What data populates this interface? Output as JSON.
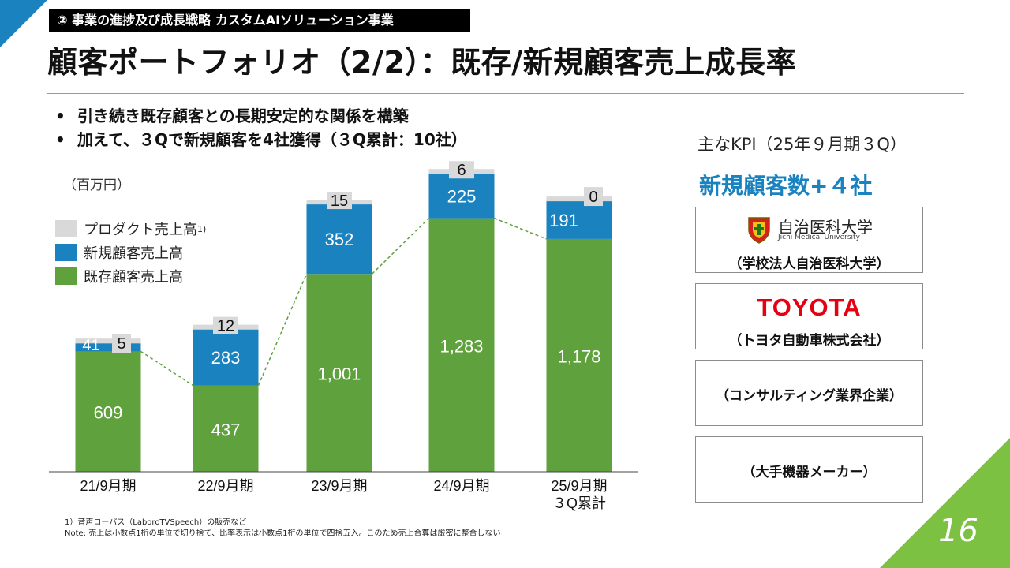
{
  "header": {
    "section_tag": "② 事業の進捗及び成長戦略 カスタムAIソリューション事業",
    "title": "顧客ポートフォリオ（2/2）：既存/新規顧客売上成長率"
  },
  "bullets": [
    "引き続き既存顧客との長期安定的な関係を構築",
    "加えて、３Qで新規顧客を4社獲得（３Q累計：10社）"
  ],
  "chart_data": {
    "type": "bar",
    "stacked": true,
    "unit_label": "（百万円）",
    "categories": [
      "21/9月期",
      "22/9月期",
      "23/9月期",
      "24/9月期",
      "25/9月期\n３Q累計"
    ],
    "series": [
      {
        "name": "既存顧客売上高",
        "color": "#5fa13d",
        "values": [
          609,
          437,
          1001,
          1283,
          1178
        ],
        "labels": [
          "609",
          "437",
          "1,001",
          "1,283",
          "1,178"
        ]
      },
      {
        "name": "新規顧客売上高",
        "color": "#1a82bf",
        "values": [
          41,
          283,
          352,
          225,
          191
        ],
        "labels": [
          "41",
          "283",
          "352",
          "225",
          "191"
        ]
      },
      {
        "name": "プロダクト売上高",
        "name_sup": "1)",
        "color": "#d9d9d9",
        "values": [
          5,
          12,
          15,
          6,
          0
        ],
        "labels": [
          "5",
          "12",
          "15",
          "6",
          "0"
        ]
      }
    ],
    "connector_lines": "dashed",
    "legend": "top-left"
  },
  "footnotes": [
    "1）音声コーパス（LaboroTVSpeech）の販売など",
    "Note: 売上は小数点1桁の単位で切り捨て、比率表示は小数点1桁の単位で四捨五入。このため売上合算は厳密に整合しない"
  ],
  "kpi": {
    "heading": "主なKPI（25年９月期３Q）",
    "value": "新規顧客数+４社",
    "customers": [
      {
        "logo_text": "自治医科大学",
        "logo_subtext": "Jichi Medical University",
        "caption": "（学校法人自治医科大学）",
        "logo": "university-crest"
      },
      {
        "logo_text": "TOYOTA",
        "caption": "（トヨタ自動車株式会社）",
        "logo": "toyota-wordmark"
      },
      {
        "caption": "（コンサルティング業界企業）"
      },
      {
        "caption": "（大手機器メーカー）"
      }
    ]
  },
  "page_number": "16",
  "colors": {
    "accent_blue": "#1a82bf",
    "accent_green": "#7cc142"
  }
}
